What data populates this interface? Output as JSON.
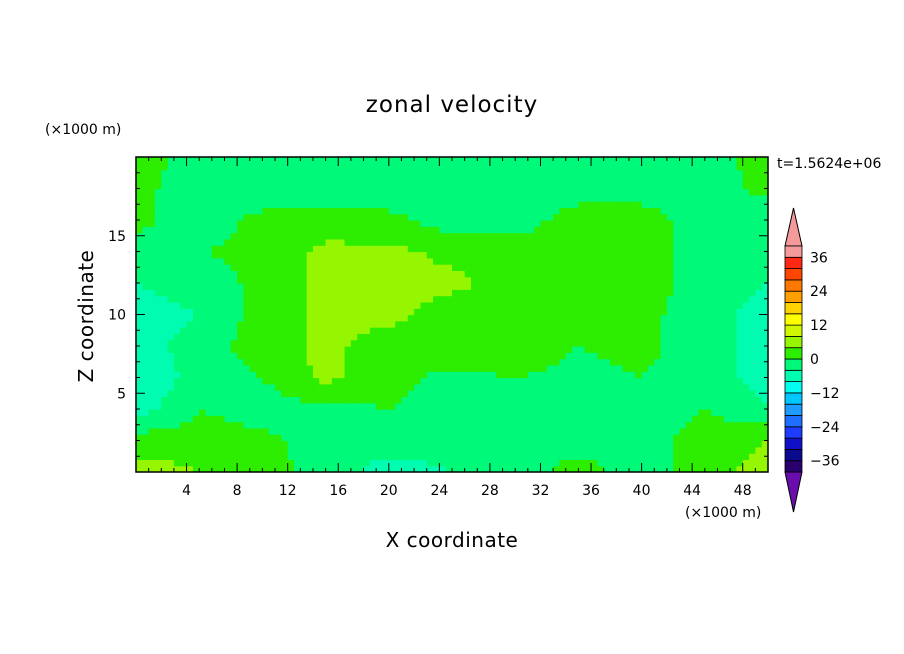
{
  "chart_data": {
    "type": "heatmap",
    "title": "zonal velocity",
    "xlabel": "X coordinate",
    "ylabel": "Z coordinate",
    "x_unit": "(×1000 m)",
    "y_unit": "(×1000 m)",
    "time_label": "t=1.5624e+06",
    "xlim": [
      0,
      50
    ],
    "ylim": [
      0,
      20
    ],
    "x_ticks": [
      4,
      8,
      12,
      16,
      20,
      24,
      28,
      32,
      36,
      40,
      44,
      48
    ],
    "y_ticks": [
      5,
      10,
      15
    ],
    "colorbar": {
      "min": -40,
      "max": 40,
      "step": 4,
      "extend": "both",
      "ticks": [
        -36,
        -24,
        -12,
        0,
        12,
        24,
        36
      ],
      "colors": [
        "#6a0dad",
        "#2a006e",
        "#0a0a8e",
        "#1010c8",
        "#1e3cff",
        "#1e6eff",
        "#1e9bff",
        "#00c8ff",
        "#00fff0",
        "#00fcb0",
        "#00f978",
        "#2ded00",
        "#96f500",
        "#d2f500",
        "#ffff00",
        "#ffd200",
        "#ffa000",
        "#ff7800",
        "#ff4600",
        "#ff2814",
        "#f59a9a"
      ]
    },
    "grid_x": [
      0,
      5,
      10,
      15,
      20,
      25,
      30,
      35,
      40,
      45,
      50
    ],
    "grid_z": [
      0,
      2,
      4,
      6,
      8,
      10,
      12,
      14,
      16,
      18,
      20
    ],
    "values": [
      [
        6,
        4,
        2,
        -2,
        -6,
        -4,
        -2,
        2,
        -2,
        2,
        6
      ],
      [
        2,
        2,
        1,
        -2,
        -2,
        -2,
        -2,
        -2,
        -2,
        2,
        4
      ],
      [
        -6,
        0,
        -2,
        -1,
        0,
        -2,
        -4,
        -2,
        -2,
        0,
        -4
      ],
      [
        -8,
        -2,
        0,
        5,
        1,
        -1,
        0,
        -1,
        0,
        -2,
        -6
      ],
      [
        -6,
        -2,
        2,
        5,
        2,
        3,
        2,
        0,
        1,
        -2,
        -6
      ],
      [
        -6,
        -4,
        2,
        5,
        5,
        2,
        2,
        2,
        1,
        -2,
        -6
      ],
      [
        -4,
        -2,
        1,
        5,
        5,
        5,
        2,
        2,
        2,
        -2,
        -4
      ],
      [
        -2,
        0,
        1,
        5,
        5,
        3,
        2,
        2,
        2,
        -2,
        -4
      ],
      [
        1,
        -2,
        1,
        2,
        1,
        -2,
        -2,
        2,
        2,
        -2,
        -2
      ],
      [
        1,
        -2,
        -2,
        -2,
        -2,
        -2,
        -2,
        -2,
        -2,
        -2,
        1
      ],
      [
        2,
        -2,
        -2,
        -2,
        -2,
        -2,
        -2,
        -2,
        -2,
        -2,
        2
      ]
    ]
  }
}
